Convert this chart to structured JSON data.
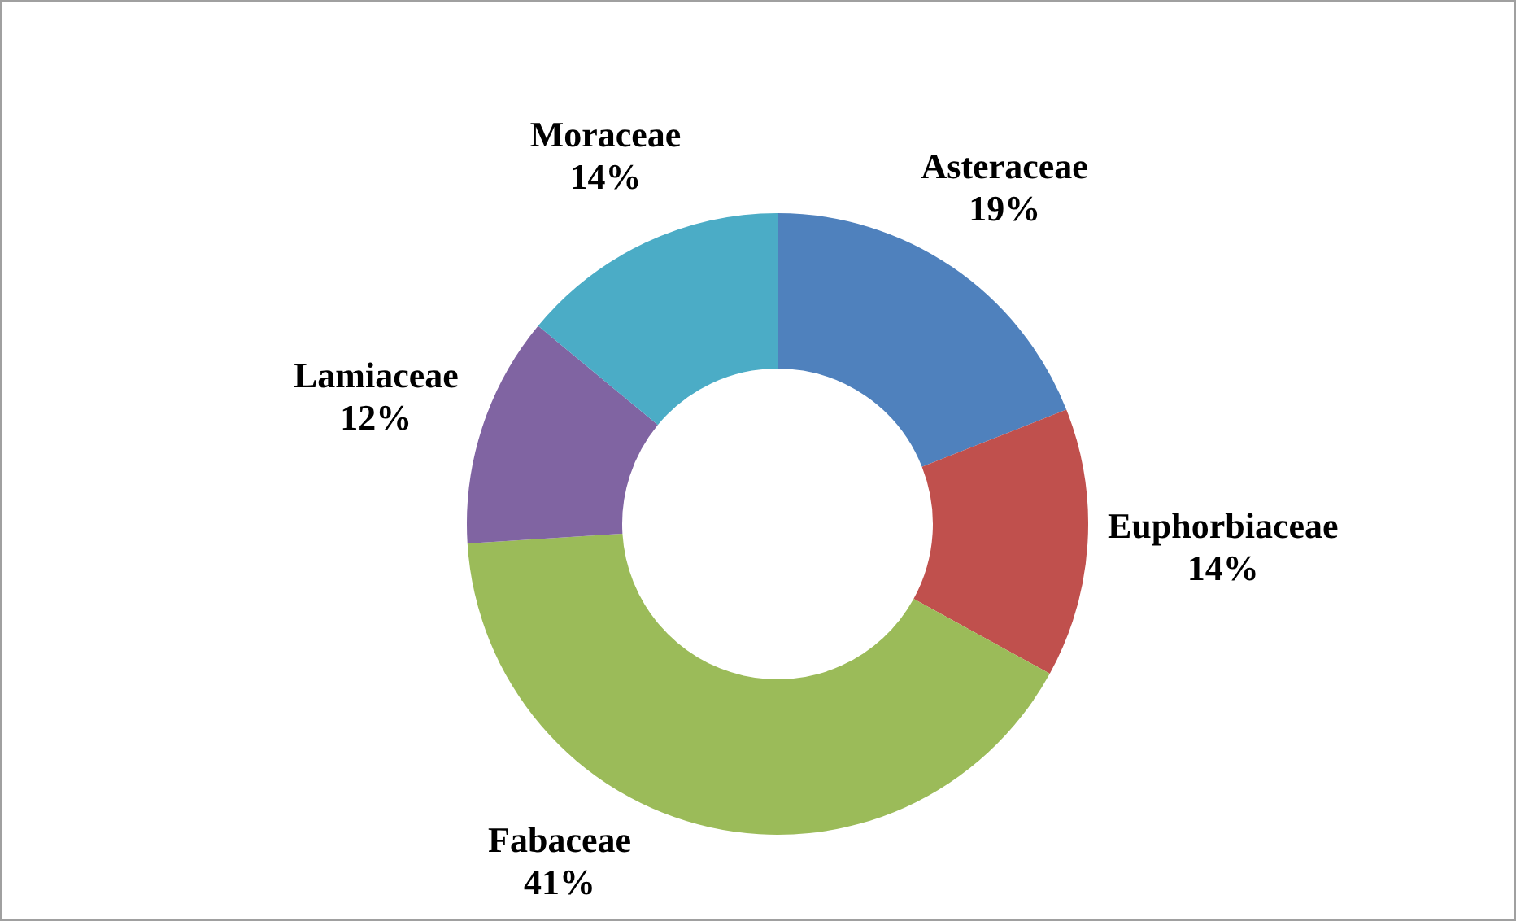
{
  "chart_data": {
    "type": "donut",
    "categories": [
      "Asteraceae",
      "Euphorbiaceae",
      "Fabaceae",
      "Lamiaceae",
      "Moraceae"
    ],
    "values": [
      19,
      14,
      41,
      12,
      14
    ],
    "colors": [
      "#4f81bd",
      "#c0504d",
      "#9bbb59",
      "#8064a2",
      "#4bacc6"
    ],
    "value_labels": [
      "19%",
      "14%",
      "41%",
      "12%",
      "14%"
    ],
    "legend": false
  }
}
